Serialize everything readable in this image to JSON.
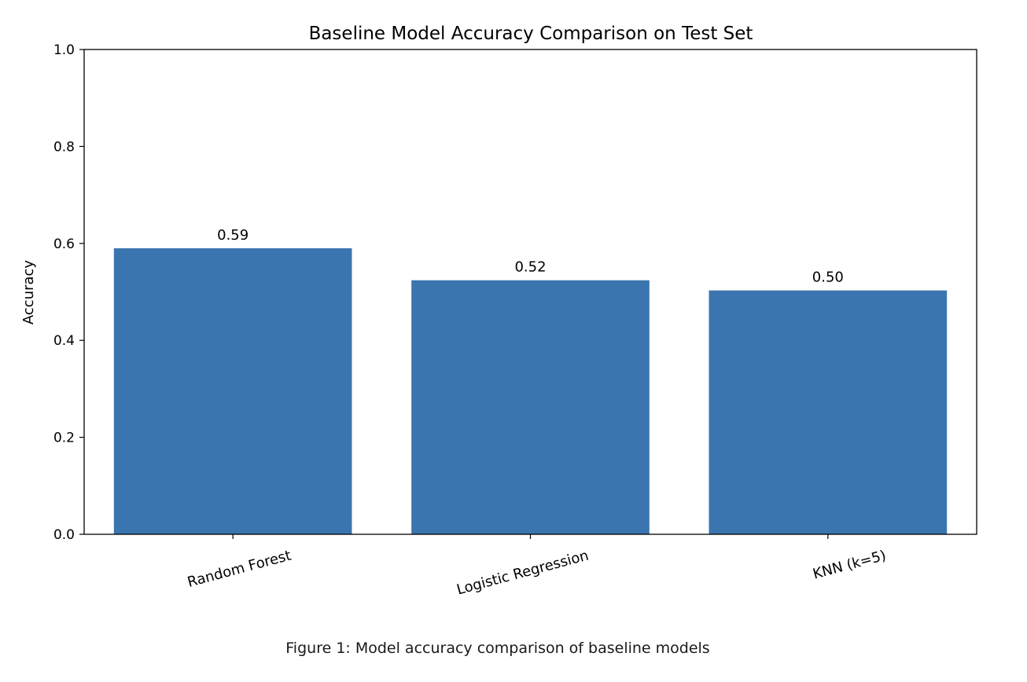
{
  "chart_data": {
    "type": "bar",
    "title": "Baseline Model Accuracy Comparison on Test Set",
    "xlabel": "",
    "ylabel": "Accuracy",
    "ylim": [
      0,
      1.0
    ],
    "yticks": [
      "0.0",
      "0.2",
      "0.4",
      "0.6",
      "0.8",
      "1.0"
    ],
    "categories": [
      "Random Forest",
      "Logistic Regression",
      "KNN (k=5)"
    ],
    "values": [
      0.59,
      0.524,
      0.503
    ],
    "data_labels": [
      "0.59",
      "0.52",
      "0.50"
    ],
    "bar_color": "#3b75af",
    "grid": false,
    "xtick_rotation_deg": 15
  },
  "caption": "Figure 1: Model accuracy comparison of baseline models"
}
